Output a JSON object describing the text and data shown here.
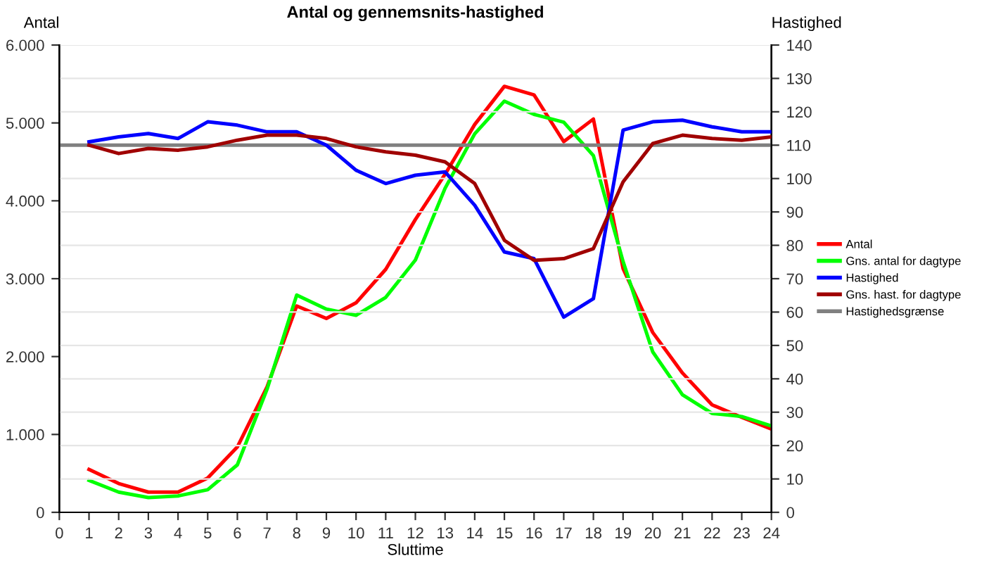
{
  "chart_data": {
    "type": "line",
    "title": "Antal og gennemsnits-hastighed",
    "xlabel": "Sluttime",
    "ylabel": "Antal",
    "y2label": "Hastighed",
    "x": [
      1,
      2,
      3,
      4,
      5,
      6,
      7,
      8,
      9,
      10,
      11,
      12,
      13,
      14,
      15,
      16,
      17,
      18,
      19,
      20,
      21,
      22,
      23,
      24
    ],
    "series": [
      {
        "name": "Antal",
        "color": "#ff0000",
        "values": [
          550,
          370,
          260,
          260,
          440,
          840,
          1610,
          2650,
          2490,
          2690,
          3120,
          3760,
          4340,
          4980,
          5470,
          5360,
          4760,
          5050,
          3130,
          2310,
          1790,
          1380,
          1220,
          1070
        ]
      },
      {
        "name": "Gns. antal for dagtype",
        "color": "#00ff00",
        "values": [
          410,
          260,
          190,
          210,
          290,
          610,
          1580,
          2790,
          2610,
          2530,
          2760,
          3240,
          4160,
          4860,
          5280,
          5110,
          5010,
          4580,
          3220,
          2060,
          1510,
          1270,
          1230,
          1110
        ]
      },
      {
        "name": "Hastighed",
        "color": "#0000ff",
        "axis": "y2",
        "values": [
          111,
          112.5,
          113.5,
          112,
          117,
          116,
          114,
          114,
          110,
          102.5,
          98.5,
          101,
          102,
          92,
          78,
          76,
          58.5,
          64,
          114.5,
          117,
          117.5,
          115.5,
          114,
          114
        ]
      },
      {
        "name": "Gns. hast. for dagtype",
        "color": "#a00000",
        "axis": "y2",
        "values": [
          110,
          107.5,
          109,
          108.5,
          109.5,
          111.5,
          113,
          113,
          112,
          109.5,
          108,
          107,
          105,
          98.5,
          81.5,
          75.5,
          76,
          79,
          99,
          110.5,
          113,
          112,
          111.5,
          112.5
        ]
      }
    ],
    "ref_lines": [
      {
        "axis": "y2",
        "value": 110,
        "label": "Hastighedsgrænse",
        "color": "#808080"
      }
    ],
    "xlim": [
      0,
      24
    ],
    "xticks": [
      0,
      1,
      2,
      3,
      4,
      5,
      6,
      7,
      8,
      9,
      10,
      11,
      12,
      13,
      14,
      15,
      16,
      17,
      18,
      19,
      20,
      21,
      22,
      23,
      24
    ],
    "ylim": [
      0,
      6000
    ],
    "yticks": [
      {
        "value": 0,
        "label": "0"
      },
      {
        "value": 1000,
        "label": "1.000"
      },
      {
        "value": 2000,
        "label": "2.000"
      },
      {
        "value": 3000,
        "label": "3.000"
      },
      {
        "value": 4000,
        "label": "4.000"
      },
      {
        "value": 5000,
        "label": "5.000"
      },
      {
        "value": 6000,
        "label": "6.000"
      }
    ],
    "y2lim": [
      0,
      140
    ],
    "y2ticks": [
      0,
      10,
      20,
      30,
      40,
      50,
      60,
      70,
      80,
      90,
      100,
      110,
      120,
      130,
      140
    ],
    "grid": "y",
    "legend": "right",
    "marker": "none",
    "line_style": "solid"
  }
}
